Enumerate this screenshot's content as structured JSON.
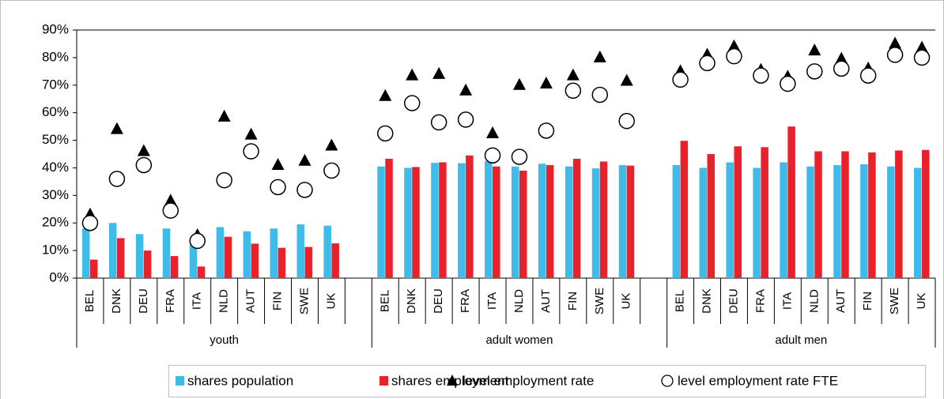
{
  "chart_data": {
    "type": "bar",
    "groups": [
      {
        "name": "youth",
        "categories": [
          "BEL",
          "DNK",
          "DEU",
          "FRA",
          "ITA",
          "NLD",
          "AUT",
          "FIN",
          "SWE",
          "UK"
        ]
      },
      {
        "name": "adult women",
        "categories": [
          "BEL",
          "DNK",
          "DEU",
          "FRA",
          "ITA",
          "NLD",
          "AUT",
          "FIN",
          "SWE",
          "UK"
        ]
      },
      {
        "name": "adult men",
        "categories": [
          "BEL",
          "DNK",
          "DEU",
          "FRA",
          "ITA",
          "NLD",
          "AUT",
          "FIN",
          "SWE",
          "UK"
        ]
      }
    ],
    "series": [
      {
        "name": "shares population",
        "type": "bar",
        "color": "#3fbbe9",
        "values": [
          18,
          20,
          16,
          18,
          12,
          18.5,
          17,
          18,
          19.5,
          19,
          40.5,
          40,
          41.8,
          41.7,
          42.5,
          40.5,
          41.5,
          40.5,
          39.8,
          41,
          41,
          40,
          42,
          40,
          42,
          40.5,
          41,
          41.3,
          40.5,
          40
        ]
      },
      {
        "name": "shares employment",
        "type": "bar",
        "color": "#e8212b",
        "values": [
          6.7,
          14.5,
          10,
          8,
          4.2,
          15,
          12.5,
          11,
          11.3,
          12.6,
          43.3,
          40.3,
          42,
          44.5,
          40.5,
          39,
          41,
          43.3,
          42.3,
          40.8,
          49.8,
          45,
          47.8,
          47.5,
          55,
          46,
          46,
          45.6,
          46.3,
          46.5
        ]
      },
      {
        "name": "level employment rate",
        "type": "triangle",
        "color": "#000000",
        "values": [
          23,
          54,
          46,
          28,
          15.5,
          58.5,
          52,
          41,
          42.5,
          48,
          66,
          73.5,
          74,
          68,
          52.5,
          70,
          70.5,
          73.5,
          80,
          71.5,
          75,
          81,
          84,
          75.5,
          73,
          82.5,
          79.5,
          76,
          85,
          83.5
        ]
      },
      {
        "name": "level employment rate FTE",
        "type": "circle",
        "color": "#000000",
        "values": [
          20,
          36,
          41,
          24.5,
          13.5,
          35.5,
          46,
          33,
          32,
          39,
          52.5,
          63.5,
          56.5,
          57.5,
          44.5,
          44,
          53.5,
          68,
          66.5,
          57,
          72,
          78,
          80.5,
          73.5,
          70.5,
          75,
          76,
          73.5,
          81,
          80
        ]
      }
    ],
    "ylim": [
      0,
      90
    ],
    "yticks": [
      {
        "value": 0,
        "label": "0%"
      },
      {
        "value": 10,
        "label": "10%"
      },
      {
        "value": 20,
        "label": "20%"
      },
      {
        "value": 30,
        "label": "30%"
      },
      {
        "value": 40,
        "label": "40%"
      },
      {
        "value": 50,
        "label": "50%"
      },
      {
        "value": 60,
        "label": "60%"
      },
      {
        "value": 70,
        "label": "70%"
      },
      {
        "value": 80,
        "label": "80%"
      },
      {
        "value": 90,
        "label": "90%"
      }
    ],
    "grid": false,
    "legend": "bottom"
  }
}
